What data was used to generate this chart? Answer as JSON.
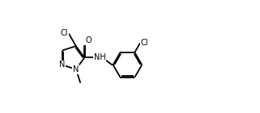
{
  "background_color": "#ffffff",
  "line_color": "#000000",
  "line_width": 1.3,
  "font_size": 7.0,
  "fig_width": 3.21,
  "fig_height": 1.4,
  "dpi": 100,
  "xlim": [
    0,
    10
  ],
  "ylim": [
    0,
    4.36
  ]
}
